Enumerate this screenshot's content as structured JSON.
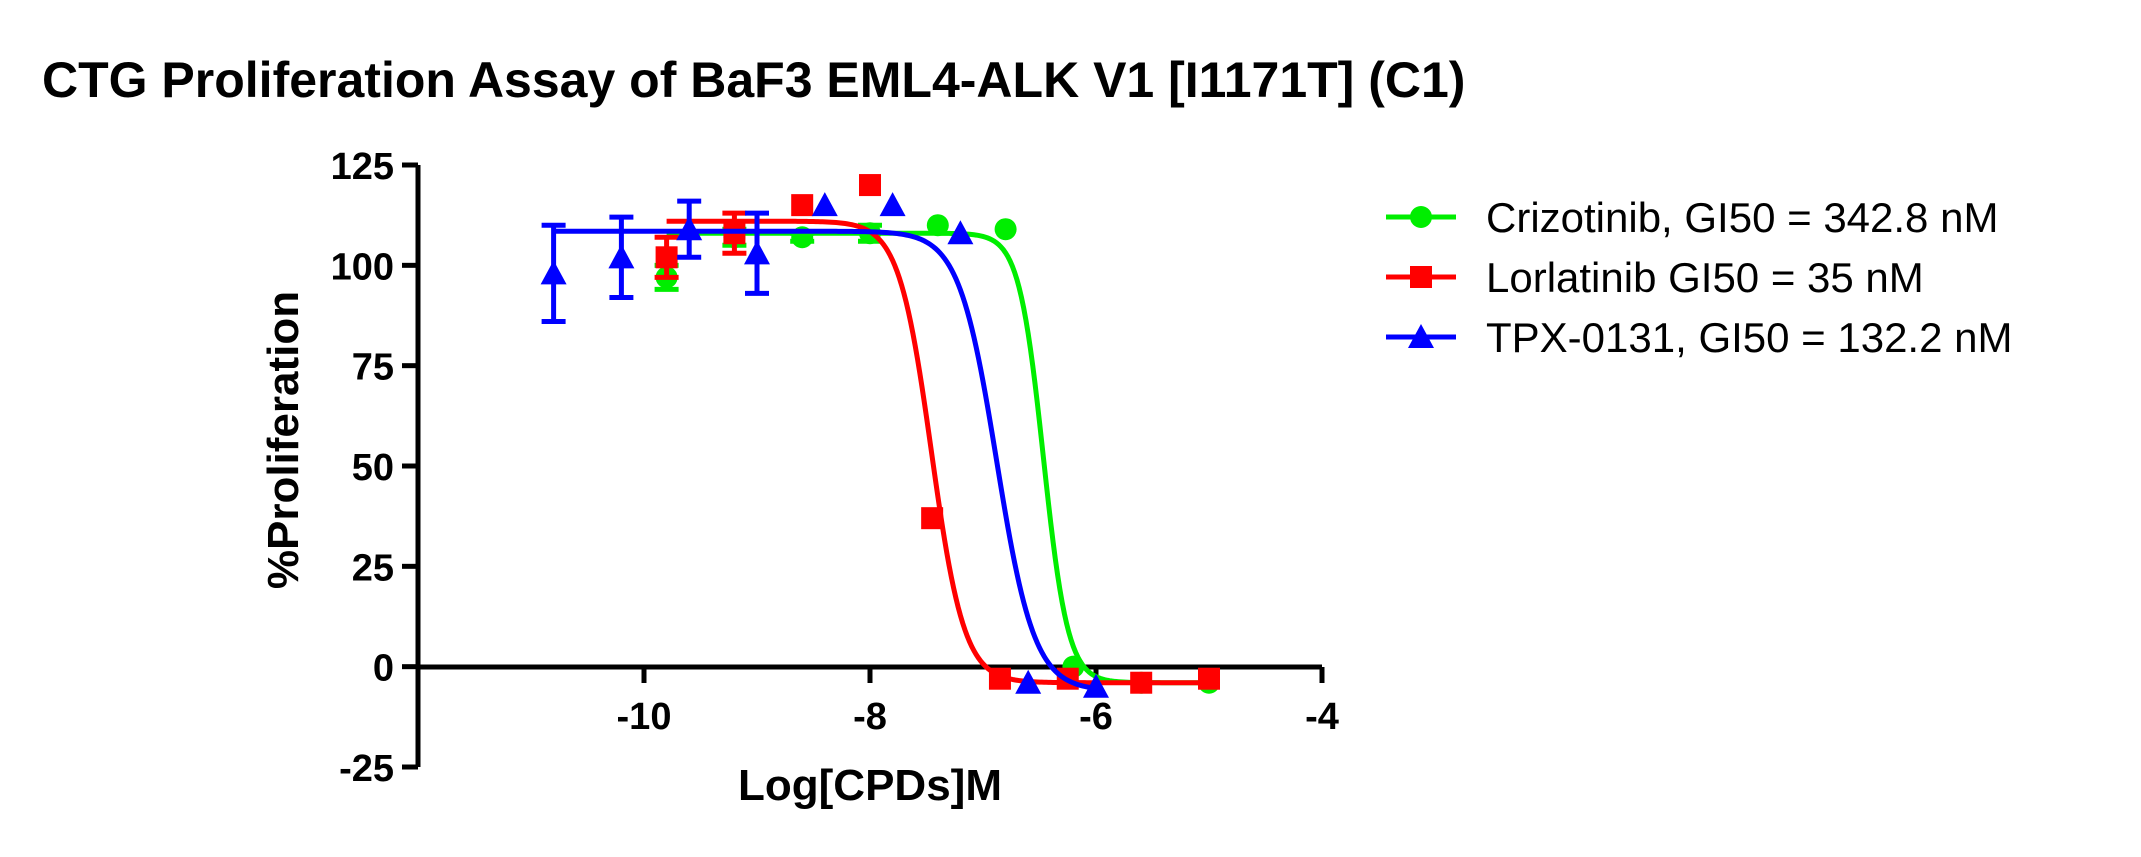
{
  "chart_data": {
    "type": "scatter",
    "title": "CTG Proliferation Assay of BaF3 EML4-ALK V1 [I1171T] (C1)",
    "xlabel": "Log[CPDs]M",
    "ylabel": "%Proliferation",
    "xlim": [
      -12,
      -4
    ],
    "ylim": [
      -25,
      125
    ],
    "x_ticks": [
      -10,
      -8,
      -6,
      -4
    ],
    "x_tick_labels": [
      "-10",
      "-8",
      "-6",
      "-4"
    ],
    "y_ticks": [
      -25,
      0,
      25,
      50,
      75,
      100,
      125
    ],
    "y_tick_labels": [
      "-25",
      "0",
      "25",
      "50",
      "75",
      "100",
      "125"
    ],
    "grid": false,
    "legend_position": "right",
    "series": [
      {
        "name": "Crizotinib, GI50 = 342.8 nM",
        "color": "#00ee00",
        "marker": "circle",
        "points": [
          {
            "x": -9.8,
            "y": 97,
            "err": 3
          },
          {
            "x": -9.2,
            "y": 107,
            "err": 2
          },
          {
            "x": -8.6,
            "y": 107,
            "err": 1
          },
          {
            "x": -8.0,
            "y": 108,
            "err": 2
          },
          {
            "x": -7.4,
            "y": 110,
            "err": 0
          },
          {
            "x": -6.8,
            "y": 109,
            "err": 0
          },
          {
            "x": -6.2,
            "y": 0,
            "err": 0
          },
          {
            "x": -5.6,
            "y": -4,
            "err": 0
          },
          {
            "x": -5.0,
            "y": -4,
            "err": 0
          }
        ],
        "fit": {
          "top": 108,
          "bottom": -4,
          "logGI50": -6.465,
          "hill": 4.0,
          "x_from": -9.8,
          "x_to": -5.0
        }
      },
      {
        "name": "Lorlatinib GI50 = 35 nM",
        "color": "#ff0000",
        "marker": "square",
        "points": [
          {
            "x": -9.8,
            "y": 102,
            "err": 5
          },
          {
            "x": -9.2,
            "y": 108,
            "err": 5
          },
          {
            "x": -8.6,
            "y": 115,
            "err": 0
          },
          {
            "x": -8.0,
            "y": 120,
            "err": 0
          },
          {
            "x": -7.45,
            "y": 37,
            "err": 0
          },
          {
            "x": -6.85,
            "y": -3,
            "err": 0
          },
          {
            "x": -6.25,
            "y": -3,
            "err": 0
          },
          {
            "x": -5.6,
            "y": -4,
            "err": 0
          },
          {
            "x": -5.0,
            "y": -3,
            "err": 0
          }
        ],
        "fit": {
          "top": 111,
          "bottom": -4,
          "logGI50": -7.456,
          "hill": 3.0,
          "x_from": -9.8,
          "x_to": -5.0
        }
      },
      {
        "name": "TPX-0131, GI50 = 132.2 nM",
        "color": "#0000ff",
        "marker": "triangle",
        "points": [
          {
            "x": -10.8,
            "y": 98,
            "err": 12
          },
          {
            "x": -10.2,
            "y": 102,
            "err": 10
          },
          {
            "x": -9.6,
            "y": 109,
            "err": 7
          },
          {
            "x": -9.0,
            "y": 103,
            "err": 10
          },
          {
            "x": -8.4,
            "y": 115,
            "err": 0
          },
          {
            "x": -7.8,
            "y": 115,
            "err": 0
          },
          {
            "x": -7.2,
            "y": 108,
            "err": 0
          },
          {
            "x": -6.6,
            "y": -4,
            "err": 0
          },
          {
            "x": -6.0,
            "y": -5,
            "err": 0
          }
        ],
        "fit": {
          "top": 108.5,
          "bottom": -6,
          "logGI50": -6.879,
          "hill": 2.6,
          "x_from": -10.8,
          "x_to": -6.0
        }
      }
    ]
  }
}
